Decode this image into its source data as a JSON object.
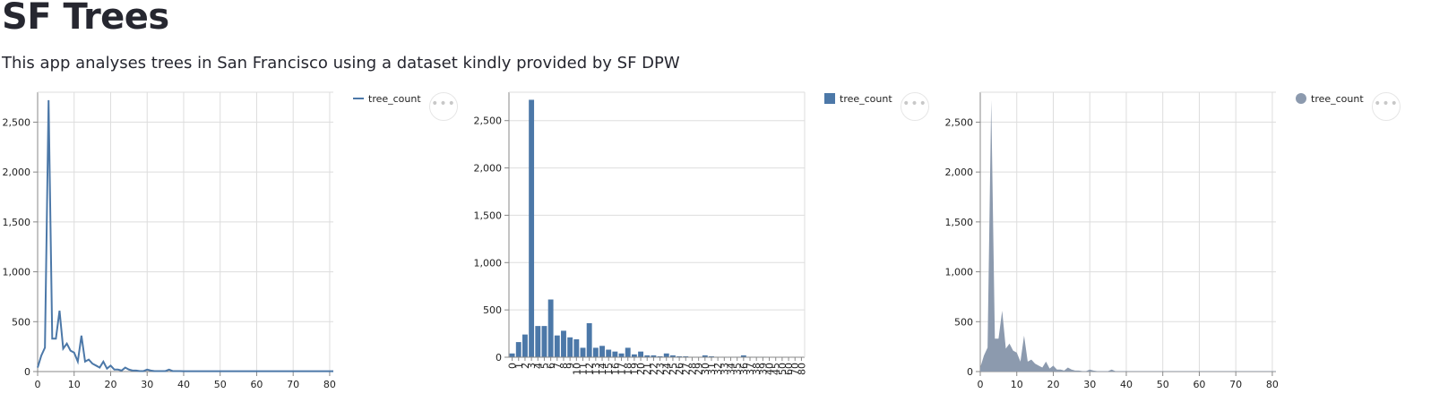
{
  "page": {
    "title": "SF Trees",
    "subtitle": "This app analyses trees in San Francisco using a dataset kindly provided by SF DPW"
  },
  "menu": {
    "icon": "more-horizontal-icon",
    "label": "•••"
  },
  "chart_data": [
    {
      "type": "line",
      "series": [
        {
          "name": "tree_count",
          "color": "#4c78a8"
        }
      ],
      "legend": "top-right",
      "grid": true,
      "x": [
        0,
        1,
        2,
        3,
        4,
        5,
        6,
        7,
        8,
        9,
        10,
        11,
        12,
        13,
        14,
        15,
        16,
        17,
        18,
        19,
        20,
        21,
        22,
        23,
        24,
        25,
        26,
        27,
        28,
        29,
        30,
        31,
        32,
        33,
        34,
        35,
        36,
        37,
        38,
        39,
        40,
        45,
        50,
        55,
        60,
        65,
        70,
        75,
        80,
        81
      ],
      "y": [
        40,
        160,
        240,
        2720,
        330,
        330,
        610,
        230,
        280,
        210,
        190,
        100,
        360,
        100,
        120,
        80,
        60,
        40,
        100,
        30,
        60,
        20,
        20,
        10,
        40,
        20,
        10,
        10,
        5,
        5,
        20,
        10,
        5,
        5,
        5,
        5,
        20,
        5,
        5,
        5,
        3,
        3,
        3,
        3,
        3,
        3,
        3,
        3,
        3,
        3
      ],
      "xlim": [
        0,
        81
      ],
      "ylim": [
        0,
        2800
      ],
      "xticks": [
        0,
        10,
        20,
        30,
        40,
        50,
        60,
        70,
        80
      ],
      "yticks": [
        0,
        500,
        1000,
        1500,
        2000,
        2500
      ]
    },
    {
      "type": "bar",
      "series": [
        {
          "name": "tree_count",
          "color": "#4c78a8"
        }
      ],
      "legend": "top-right",
      "grid": true,
      "categories": [
        "0",
        "1",
        "2",
        "3",
        "4",
        "5",
        "6",
        "7",
        "8",
        "9",
        "10",
        "11",
        "12",
        "13",
        "14",
        "15",
        "16",
        "17",
        "18",
        "19",
        "20",
        "21",
        "22",
        "23",
        "24",
        "25",
        "26",
        "27",
        "28",
        "29",
        "30",
        "31",
        "32",
        "33",
        "34",
        "35",
        "36",
        "37",
        "38",
        "39",
        "40",
        "45",
        "50",
        "60",
        "70",
        "80"
      ],
      "values": [
        40,
        160,
        240,
        2720,
        330,
        330,
        610,
        230,
        280,
        210,
        190,
        100,
        360,
        100,
        120,
        80,
        60,
        40,
        100,
        30,
        60,
        20,
        20,
        10,
        40,
        20,
        10,
        10,
        5,
        5,
        20,
        10,
        5,
        5,
        5,
        5,
        20,
        5,
        5,
        5,
        3,
        3,
        3,
        3,
        3,
        3
      ],
      "ylim": [
        0,
        2800
      ],
      "yticks": [
        0,
        500,
        1000,
        1500,
        2000,
        2500
      ]
    },
    {
      "type": "area",
      "series": [
        {
          "name": "tree_count",
          "color": "#8c9aae"
        }
      ],
      "legend": "top-right",
      "grid": true,
      "x": [
        0,
        1,
        2,
        3,
        4,
        5,
        6,
        7,
        8,
        9,
        10,
        11,
        12,
        13,
        14,
        15,
        16,
        17,
        18,
        19,
        20,
        21,
        22,
        23,
        24,
        25,
        26,
        27,
        28,
        29,
        30,
        31,
        32,
        33,
        34,
        35,
        36,
        37,
        38,
        39,
        40,
        45,
        50,
        55,
        60,
        65,
        70,
        75,
        80,
        81
      ],
      "y": [
        40,
        160,
        240,
        2720,
        330,
        330,
        610,
        230,
        280,
        210,
        190,
        100,
        360,
        100,
        120,
        80,
        60,
        40,
        100,
        30,
        60,
        20,
        20,
        10,
        40,
        20,
        10,
        10,
        5,
        5,
        20,
        10,
        5,
        5,
        5,
        5,
        20,
        5,
        5,
        5,
        3,
        3,
        3,
        3,
        3,
        3,
        3,
        3,
        3,
        3
      ],
      "xlim": [
        0,
        81
      ],
      "ylim": [
        0,
        2800
      ],
      "xticks": [
        0,
        10,
        20,
        30,
        40,
        50,
        60,
        70,
        80
      ],
      "yticks": [
        0,
        500,
        1000,
        1500,
        2000,
        2500
      ]
    }
  ]
}
